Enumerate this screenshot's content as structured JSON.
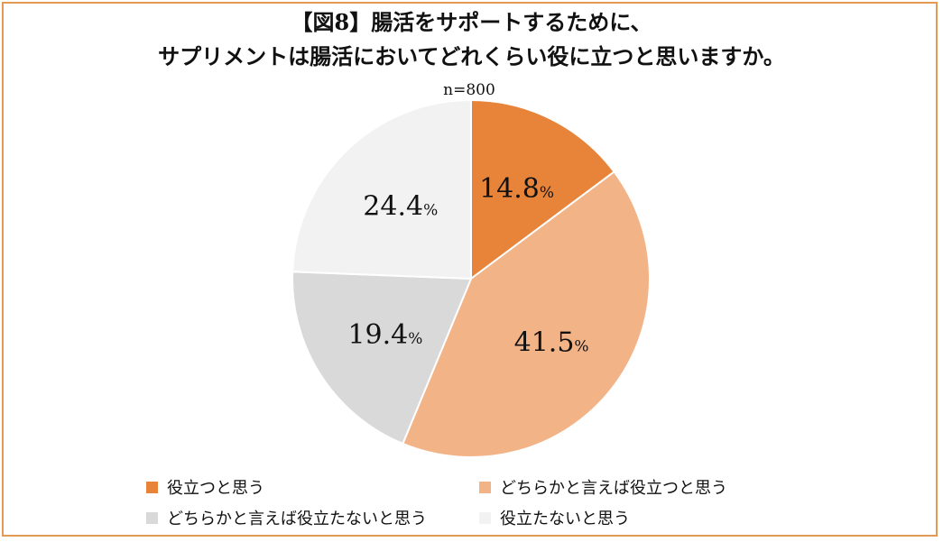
{
  "chart_data": {
    "type": "pie",
    "title": "【図8】腸活をサポートするために、",
    "subtitle": "サプリメントは腸活においてどれくらい役に立つと思いますか。",
    "note": "n=800",
    "unit": "%",
    "slices": [
      {
        "label": "役立つと思う",
        "value": 14.8,
        "display": "14.8",
        "color": "#E8843A"
      },
      {
        "label": "どちらかと言えば役立つと思う",
        "value": 41.5,
        "display": "41.5",
        "color": "#F2B387"
      },
      {
        "label": "どちらかと言えば役立たないと思う",
        "value": 19.4,
        "display": "19.4",
        "color": "#D9D9D9"
      },
      {
        "label": "役立たないと思う",
        "value": 24.4,
        "display": "24.4",
        "color": "#F2F2F2"
      }
    ],
    "legend_position": "bottom",
    "start_angle": "12 o'clock",
    "direction": "clockwise"
  },
  "frame_color": "#E49A55"
}
